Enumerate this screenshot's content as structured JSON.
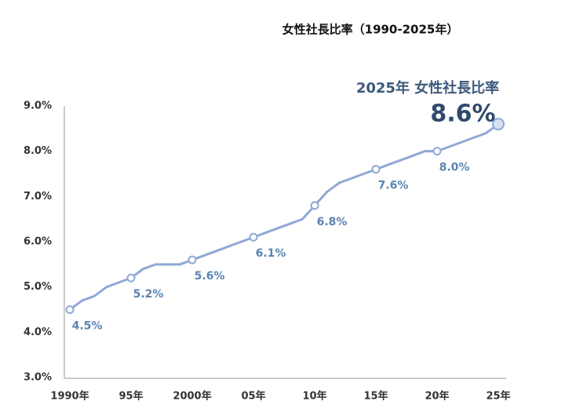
{
  "chart_data": {
    "type": "line",
    "title": "女性社長比率（1990-2025年）",
    "annotation": "2025年 女性社長比率",
    "x": [
      1990,
      1991,
      1992,
      1993,
      1994,
      1995,
      1996,
      1997,
      1998,
      1999,
      2000,
      2001,
      2002,
      2003,
      2004,
      2005,
      2006,
      2007,
      2008,
      2009,
      2010,
      2011,
      2012,
      2013,
      2014,
      2015,
      2016,
      2017,
      2018,
      2019,
      2020,
      2021,
      2022,
      2023,
      2024,
      2025
    ],
    "series": [
      {
        "color": "#8fa8d6",
        "values": [
          4.5,
          4.7,
          4.8,
          5.0,
          5.1,
          5.2,
          5.4,
          5.5,
          5.5,
          5.5,
          5.6,
          5.7,
          5.8,
          5.9,
          6.0,
          6.1,
          6.2,
          6.3,
          6.4,
          6.5,
          6.8,
          7.1,
          7.3,
          7.4,
          7.5,
          7.6,
          7.7,
          7.8,
          7.9,
          8.0,
          8.0,
          8.1,
          8.2,
          8.3,
          8.4,
          8.6
        ],
        "value_labels": [
          "4.5%",
          null,
          null,
          null,
          null,
          "5.2%",
          null,
          null,
          null,
          null,
          "5.6%",
          null,
          null,
          null,
          null,
          "6.1%",
          null,
          null,
          null,
          null,
          "6.8%",
          null,
          null,
          null,
          null,
          "7.6%",
          null,
          null,
          null,
          null,
          "8.0%",
          null,
          null,
          null,
          null,
          "8.6%"
        ]
      }
    ],
    "xlim": [
      1990,
      2025
    ],
    "xticks": [
      {
        "value": 1990,
        "label": "1990年"
      },
      {
        "value": 1995,
        "label": "95年"
      },
      {
        "value": 2000,
        "label": "2000年"
      },
      {
        "value": 2005,
        "label": "05年"
      },
      {
        "value": 2010,
        "label": "10年"
      },
      {
        "value": 2015,
        "label": "15年"
      },
      {
        "value": 2020,
        "label": "20年"
      },
      {
        "value": 2025,
        "label": "25年"
      }
    ],
    "ylim": [
      3,
      9
    ],
    "yticks": [
      {
        "value": 3,
        "label": "3.0%"
      },
      {
        "value": 4,
        "label": "4.0%"
      },
      {
        "value": 5,
        "label": "5.0%"
      },
      {
        "value": 6,
        "label": "6.0%"
      },
      {
        "value": 7,
        "label": "7.0%"
      },
      {
        "value": 8,
        "label": "8.0%"
      },
      {
        "value": 9,
        "label": "9.0%"
      }
    ],
    "grid": false
  }
}
